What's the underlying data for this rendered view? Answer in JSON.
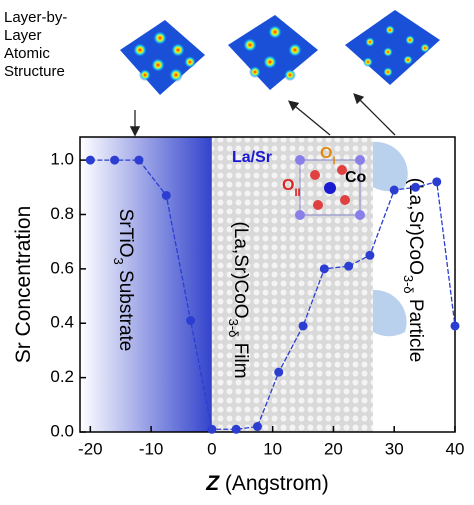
{
  "chart_data": {
    "type": "line",
    "caption_lines": [
      "Layer-by-",
      "Layer",
      "Atomic",
      "Structure"
    ],
    "x_label_parts": [
      {
        "text": "Z",
        "style": "italic"
      },
      {
        "text": " (Angstrom)",
        "style": "normal"
      }
    ],
    "y_label": "Sr Concentration",
    "x": [
      -20,
      -16,
      -12,
      -7.5,
      -3.5,
      0,
      4,
      7.5,
      11,
      15,
      18.5,
      22.5,
      26,
      30,
      33.5,
      37,
      40
    ],
    "series": [
      {
        "color": "#2b3ed1",
        "values": [
          1.0,
          1.0,
          1.0,
          0.87,
          0.41,
          0.01,
          0.01,
          0.02,
          0.22,
          0.39,
          0.6,
          0.61,
          0.65,
          0.89,
          0.9,
          0.92,
          0.39
        ]
      }
    ],
    "xlim": [
      -21.7,
      40
    ],
    "ylim": [
      0,
      1.085
    ],
    "xticks": [
      -20,
      -10,
      0,
      10,
      20,
      30,
      40
    ],
    "yticks": [
      {
        "value": 0,
        "label": "0.0"
      },
      0.2,
      0.4,
      0.6,
      0.8,
      {
        "value": 1,
        "label": "1.0"
      }
    ],
    "regions": [
      {
        "span": [
          -21.7,
          0
        ],
        "parts": [
          {
            "text": "SrTiO",
            "sub": false
          },
          {
            "text": "3",
            "sub": true
          },
          {
            "text": " Substrate",
            "sub": false
          }
        ]
      },
      {
        "span": [
          0,
          26.5
        ],
        "parts": [
          {
            "text": "(La,Sr)CoO",
            "sub": false
          },
          {
            "text": "3-δ",
            "sub": true
          },
          {
            "text": " Film",
            "sub": false
          }
        ]
      },
      {
        "span": [
          26.5,
          40
        ],
        "parts": [
          {
            "text": "(La,Sr)CoO",
            "sub": false
          },
          {
            "text": "3-δ",
            "sub": true
          },
          {
            "text": " Particle",
            "sub": false
          }
        ]
      }
    ],
    "inset_labels": {
      "la_sr": "La/Sr",
      "co": "Co",
      "o1": [
        {
          "text": "O",
          "sub": false
        },
        {
          "text": "I",
          "sub": true
        }
      ],
      "o2": [
        {
          "text": "O",
          "sub": false
        },
        {
          "text": "II",
          "sub": true
        }
      ]
    }
  }
}
